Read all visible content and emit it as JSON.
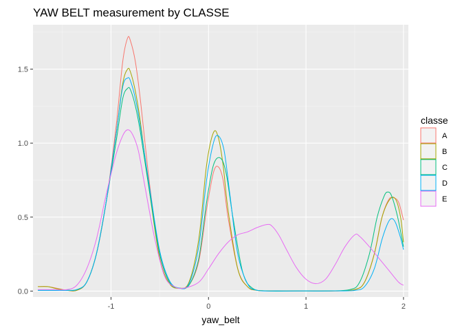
{
  "chart_data": {
    "type": "density",
    "title": "YAW BELT measurement by CLASSE",
    "xlabel": "yaw_belt",
    "ylabel": "",
    "xlim": [
      -1.8,
      2.05
    ],
    "ylim": [
      -0.04,
      1.8
    ],
    "x_ticks": [
      -1,
      0,
      1,
      2
    ],
    "x_tick_labels": [
      "-1",
      "0",
      "1",
      "2"
    ],
    "y_ticks": [
      0,
      0.5,
      1,
      1.5
    ],
    "y_tick_labels": [
      "0.0",
      "0.5",
      "1.0",
      "1.5"
    ],
    "grid": true,
    "legend": {
      "title": "classe",
      "position": "right"
    },
    "series": [
      {
        "name": "A",
        "color": "#F8766D",
        "points": [
          [
            -1.75,
            0.03
          ],
          [
            -1.65,
            0.03
          ],
          [
            -1.55,
            0.018
          ],
          [
            -1.45,
            0.005
          ],
          [
            -1.35,
            0.005
          ],
          [
            -1.25,
            0.06
          ],
          [
            -1.15,
            0.25
          ],
          [
            -1.05,
            0.6
          ],
          [
            -0.95,
            1.1
          ],
          [
            -0.88,
            1.55
          ],
          [
            -0.83,
            1.71
          ],
          [
            -0.8,
            1.69
          ],
          [
            -0.75,
            1.55
          ],
          [
            -0.7,
            1.3
          ],
          [
            -0.6,
            0.7
          ],
          [
            -0.5,
            0.25
          ],
          [
            -0.4,
            0.06
          ],
          [
            -0.3,
            0.02
          ],
          [
            -0.2,
            0.04
          ],
          [
            -0.1,
            0.2
          ],
          [
            -0.02,
            0.55
          ],
          [
            0.05,
            0.8
          ],
          [
            0.1,
            0.84
          ],
          [
            0.15,
            0.75
          ],
          [
            0.2,
            0.5
          ],
          [
            0.3,
            0.15
          ],
          [
            0.4,
            0.03
          ],
          [
            0.5,
            0.005
          ],
          [
            0.7,
            0.001
          ],
          [
            1.0,
            0.001
          ],
          [
            1.3,
            0.001
          ],
          [
            1.5,
            0.01
          ],
          [
            1.6,
            0.06
          ],
          [
            1.7,
            0.25
          ],
          [
            1.78,
            0.5
          ],
          [
            1.85,
            0.62
          ],
          [
            1.9,
            0.63
          ],
          [
            1.95,
            0.6
          ],
          [
            2.0,
            0.48
          ]
        ]
      },
      {
        "name": "B",
        "color": "#A3A500",
        "points": [
          [
            -1.75,
            0.03
          ],
          [
            -1.65,
            0.03
          ],
          [
            -1.55,
            0.015
          ],
          [
            -1.45,
            0.005
          ],
          [
            -1.35,
            0.005
          ],
          [
            -1.25,
            0.06
          ],
          [
            -1.15,
            0.25
          ],
          [
            -1.05,
            0.6
          ],
          [
            -0.95,
            1.05
          ],
          [
            -0.88,
            1.4
          ],
          [
            -0.83,
            1.5
          ],
          [
            -0.8,
            1.48
          ],
          [
            -0.75,
            1.35
          ],
          [
            -0.7,
            1.15
          ],
          [
            -0.6,
            0.65
          ],
          [
            -0.5,
            0.22
          ],
          [
            -0.4,
            0.05
          ],
          [
            -0.3,
            0.02
          ],
          [
            -0.2,
            0.06
          ],
          [
            -0.1,
            0.35
          ],
          [
            -0.02,
            0.85
          ],
          [
            0.05,
            1.07
          ],
          [
            0.1,
            1.04
          ],
          [
            0.15,
            0.85
          ],
          [
            0.2,
            0.55
          ],
          [
            0.3,
            0.15
          ],
          [
            0.4,
            0.03
          ],
          [
            0.5,
            0.005
          ],
          [
            0.7,
            0.001
          ],
          [
            1.0,
            0.001
          ],
          [
            1.3,
            0.001
          ],
          [
            1.5,
            0.01
          ],
          [
            1.6,
            0.06
          ],
          [
            1.7,
            0.25
          ],
          [
            1.78,
            0.5
          ],
          [
            1.86,
            0.62
          ],
          [
            1.92,
            0.62
          ],
          [
            1.97,
            0.5
          ],
          [
            2.0,
            0.33
          ]
        ]
      },
      {
        "name": "C",
        "color": "#00BF7D",
        "points": [
          [
            -1.75,
            0.005
          ],
          [
            -1.6,
            0.005
          ],
          [
            -1.45,
            0.005
          ],
          [
            -1.35,
            0.01
          ],
          [
            -1.25,
            0.06
          ],
          [
            -1.15,
            0.25
          ],
          [
            -1.05,
            0.6
          ],
          [
            -0.95,
            1.0
          ],
          [
            -0.88,
            1.3
          ],
          [
            -0.83,
            1.37
          ],
          [
            -0.8,
            1.36
          ],
          [
            -0.75,
            1.25
          ],
          [
            -0.7,
            1.08
          ],
          [
            -0.6,
            0.65
          ],
          [
            -0.5,
            0.25
          ],
          [
            -0.4,
            0.06
          ],
          [
            -0.3,
            0.02
          ],
          [
            -0.2,
            0.04
          ],
          [
            -0.1,
            0.22
          ],
          [
            -0.02,
            0.6
          ],
          [
            0.05,
            0.85
          ],
          [
            0.12,
            0.9
          ],
          [
            0.18,
            0.8
          ],
          [
            0.25,
            0.5
          ],
          [
            0.35,
            0.13
          ],
          [
            0.45,
            0.02
          ],
          [
            0.6,
            0.001
          ],
          [
            0.9,
            0.001
          ],
          [
            1.2,
            0.001
          ],
          [
            1.45,
            0.01
          ],
          [
            1.55,
            0.06
          ],
          [
            1.65,
            0.25
          ],
          [
            1.73,
            0.5
          ],
          [
            1.8,
            0.64
          ],
          [
            1.84,
            0.67
          ],
          [
            1.88,
            0.64
          ],
          [
            1.94,
            0.5
          ],
          [
            2.0,
            0.3
          ]
        ]
      },
      {
        "name": "D",
        "color": "#00B0F6",
        "points": [
          [
            -1.75,
            0.005
          ],
          [
            -1.6,
            0.005
          ],
          [
            -1.45,
            0.005
          ],
          [
            -1.35,
            0.01
          ],
          [
            -1.25,
            0.06
          ],
          [
            -1.15,
            0.25
          ],
          [
            -1.05,
            0.6
          ],
          [
            -0.95,
            1.05
          ],
          [
            -0.88,
            1.38
          ],
          [
            -0.83,
            1.44
          ],
          [
            -0.8,
            1.42
          ],
          [
            -0.75,
            1.3
          ],
          [
            -0.7,
            1.12
          ],
          [
            -0.6,
            0.68
          ],
          [
            -0.5,
            0.27
          ],
          [
            -0.4,
            0.07
          ],
          [
            -0.3,
            0.02
          ],
          [
            -0.2,
            0.05
          ],
          [
            -0.1,
            0.3
          ],
          [
            -0.02,
            0.75
          ],
          [
            0.05,
            1.0
          ],
          [
            0.1,
            1.05
          ],
          [
            0.16,
            0.95
          ],
          [
            0.22,
            0.65
          ],
          [
            0.3,
            0.25
          ],
          [
            0.4,
            0.05
          ],
          [
            0.5,
            0.005
          ],
          [
            0.7,
            0.001
          ],
          [
            1.0,
            0.001
          ],
          [
            1.3,
            0.001
          ],
          [
            1.5,
            0.005
          ],
          [
            1.6,
            0.03
          ],
          [
            1.7,
            0.15
          ],
          [
            1.78,
            0.35
          ],
          [
            1.84,
            0.46
          ],
          [
            1.88,
            0.49
          ],
          [
            1.92,
            0.46
          ],
          [
            1.97,
            0.36
          ],
          [
            2.0,
            0.28
          ]
        ]
      },
      {
        "name": "E",
        "color": "#E76BF3",
        "points": [
          [
            -1.75,
            0.01
          ],
          [
            -1.6,
            0.01
          ],
          [
            -1.45,
            0.01
          ],
          [
            -1.35,
            0.04
          ],
          [
            -1.25,
            0.15
          ],
          [
            -1.15,
            0.35
          ],
          [
            -1.05,
            0.65
          ],
          [
            -0.95,
            0.92
          ],
          [
            -0.88,
            1.05
          ],
          [
            -0.83,
            1.09
          ],
          [
            -0.78,
            1.06
          ],
          [
            -0.72,
            0.95
          ],
          [
            -0.65,
            0.7
          ],
          [
            -0.55,
            0.35
          ],
          [
            -0.45,
            0.1
          ],
          [
            -0.35,
            0.03
          ],
          [
            -0.25,
            0.02
          ],
          [
            -0.1,
            0.06
          ],
          [
            0.0,
            0.15
          ],
          [
            0.1,
            0.25
          ],
          [
            0.2,
            0.33
          ],
          [
            0.3,
            0.38
          ],
          [
            0.4,
            0.4
          ],
          [
            0.5,
            0.43
          ],
          [
            0.6,
            0.45
          ],
          [
            0.65,
            0.44
          ],
          [
            0.72,
            0.38
          ],
          [
            0.8,
            0.28
          ],
          [
            0.9,
            0.16
          ],
          [
            1.0,
            0.08
          ],
          [
            1.1,
            0.05
          ],
          [
            1.2,
            0.08
          ],
          [
            1.3,
            0.18
          ],
          [
            1.4,
            0.3
          ],
          [
            1.5,
            0.38
          ],
          [
            1.55,
            0.37
          ],
          [
            1.65,
            0.3
          ],
          [
            1.75,
            0.22
          ],
          [
            1.85,
            0.14
          ],
          [
            1.95,
            0.06
          ],
          [
            2.0,
            0.04
          ]
        ]
      }
    ]
  }
}
